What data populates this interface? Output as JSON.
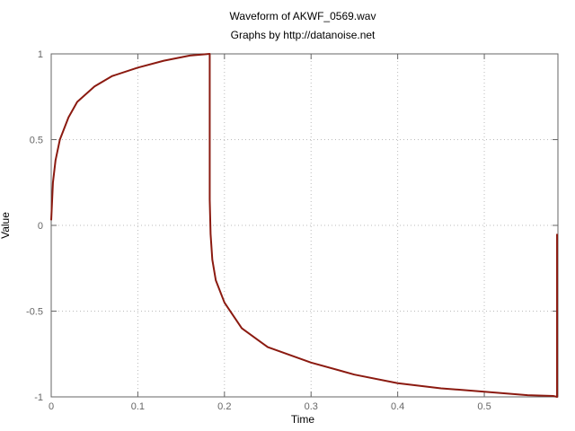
{
  "chart_data": {
    "type": "line",
    "title": "Waveform of AKWF_0569.wav",
    "subtitle": "Graphs by http://datanoise.net",
    "xlabel": "Time",
    "ylabel": "Value",
    "xlim": [
      0,
      0.585
    ],
    "ylim": [
      -1,
      1
    ],
    "xticks": [
      0,
      0.1,
      0.2,
      0.3,
      0.4,
      0.5
    ],
    "xtick_labels": [
      "0",
      "0.1",
      "0.2",
      "0.3",
      "0.4",
      "0.5"
    ],
    "yticks": [
      1,
      0.5,
      0,
      -0.5,
      -1
    ],
    "ytick_labels": [
      "1",
      "0.5",
      "0",
      "-0.5",
      "-1"
    ],
    "grid": true,
    "series": [
      {
        "color": "#8b1a10",
        "x": [
          0,
          0.002,
          0.005,
          0.01,
          0.02,
          0.03,
          0.05,
          0.07,
          0.1,
          0.13,
          0.16,
          0.183,
          0.183,
          0.184,
          0.186,
          0.19,
          0.2,
          0.22,
          0.25,
          0.3,
          0.35,
          0.4,
          0.45,
          0.5,
          0.55,
          0.58,
          0.584,
          0.584
        ],
        "y": [
          0.03,
          0.25,
          0.38,
          0.5,
          0.63,
          0.72,
          0.81,
          0.87,
          0.92,
          0.96,
          0.99,
          1.0,
          0.15,
          -0.05,
          -0.2,
          -0.32,
          -0.45,
          -0.6,
          -0.71,
          -0.8,
          -0.87,
          -0.92,
          -0.95,
          -0.97,
          -0.99,
          -0.995,
          -1.0,
          -0.05
        ]
      }
    ]
  }
}
